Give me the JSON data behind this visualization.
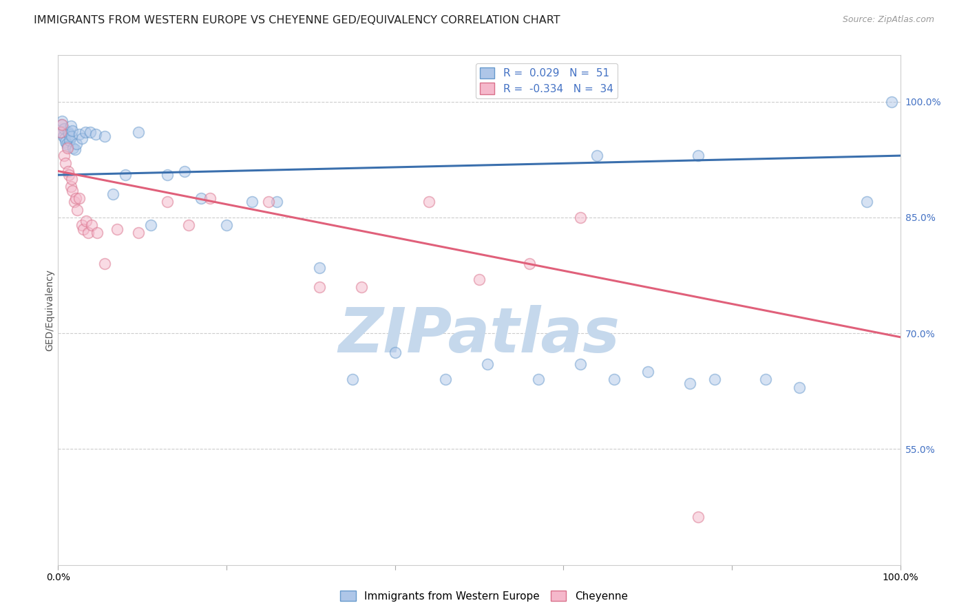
{
  "title": "IMMIGRANTS FROM WESTERN EUROPE VS CHEYENNE GED/EQUIVALENCY CORRELATION CHART",
  "source": "Source: ZipAtlas.com",
  "ylabel": "GED/Equivalency",
  "legend_label1": "Immigrants from Western Europe",
  "legend_label2": "Cheyenne",
  "r1": "0.029",
  "n1": "51",
  "r2": "-0.334",
  "n2": "34",
  "color_blue": "#aec6e8",
  "color_blue_line": "#3a6fad",
  "color_blue_edge": "#6699cc",
  "color_pink": "#f5b8cb",
  "color_pink_line": "#e0607a",
  "color_pink_edge": "#d9708a",
  "color_axis_text": "#4472c4",
  "watermark_text": "ZIPatlas",
  "xlim": [
    0.0,
    1.0
  ],
  "ylim": [
    0.4,
    1.06
  ],
  "yticks": [
    0.55,
    0.7,
    0.85,
    1.0
  ],
  "ytick_labels": [
    "55.0%",
    "70.0%",
    "85.0%",
    "100.0%"
  ],
  "blue_line_x": [
    0.0,
    1.0
  ],
  "blue_line_y": [
    0.905,
    0.93
  ],
  "pink_line_x": [
    0.0,
    1.0
  ],
  "pink_line_y": [
    0.91,
    0.695
  ],
  "blue_scatter_x": [
    0.003,
    0.004,
    0.005,
    0.006,
    0.007,
    0.008,
    0.009,
    0.01,
    0.011,
    0.012,
    0.013,
    0.014,
    0.015,
    0.016,
    0.017,
    0.018,
    0.02,
    0.022,
    0.025,
    0.028,
    0.032,
    0.038,
    0.045,
    0.055,
    0.065,
    0.08,
    0.095,
    0.11,
    0.13,
    0.15,
    0.17,
    0.2,
    0.23,
    0.26,
    0.31,
    0.35,
    0.4,
    0.46,
    0.51,
    0.57,
    0.62,
    0.66,
    0.7,
    0.75,
    0.64,
    0.76,
    0.78,
    0.84,
    0.88,
    0.96,
    0.99
  ],
  "blue_scatter_y": [
    0.96,
    0.97,
    0.975,
    0.955,
    0.965,
    0.952,
    0.948,
    0.945,
    0.942,
    0.96,
    0.958,
    0.95,
    0.968,
    0.955,
    0.962,
    0.94,
    0.938,
    0.945,
    0.958,
    0.952,
    0.96,
    0.96,
    0.958,
    0.955,
    0.88,
    0.905,
    0.96,
    0.84,
    0.905,
    0.91,
    0.875,
    0.84,
    0.87,
    0.87,
    0.785,
    0.64,
    0.675,
    0.64,
    0.66,
    0.64,
    0.66,
    0.64,
    0.65,
    0.635,
    0.93,
    0.93,
    0.64,
    0.64,
    0.63,
    0.87,
    1.0
  ],
  "pink_scatter_x": [
    0.003,
    0.005,
    0.007,
    0.009,
    0.011,
    0.012,
    0.013,
    0.015,
    0.016,
    0.017,
    0.019,
    0.021,
    0.023,
    0.025,
    0.028,
    0.03,
    0.033,
    0.036,
    0.04,
    0.046,
    0.055,
    0.07,
    0.095,
    0.13,
    0.155,
    0.18,
    0.25,
    0.31,
    0.36,
    0.44,
    0.5,
    0.56,
    0.62,
    0.76
  ],
  "pink_scatter_y": [
    0.96,
    0.97,
    0.93,
    0.92,
    0.94,
    0.91,
    0.905,
    0.89,
    0.9,
    0.885,
    0.87,
    0.875,
    0.86,
    0.875,
    0.84,
    0.835,
    0.845,
    0.83,
    0.84,
    0.83,
    0.79,
    0.835,
    0.83,
    0.87,
    0.84,
    0.875,
    0.87,
    0.76,
    0.76,
    0.87,
    0.77,
    0.79,
    0.85,
    0.462
  ],
  "background_color": "#ffffff",
  "grid_color": "#cccccc",
  "title_fontsize": 11.5,
  "source_fontsize": 9,
  "ylabel_fontsize": 10,
  "tick_fontsize": 10,
  "legend_fontsize": 11,
  "scatter_size": 130,
  "scatter_alpha": 0.5,
  "watermark_color": "#c5d8ec",
  "watermark_fontsize": 65
}
